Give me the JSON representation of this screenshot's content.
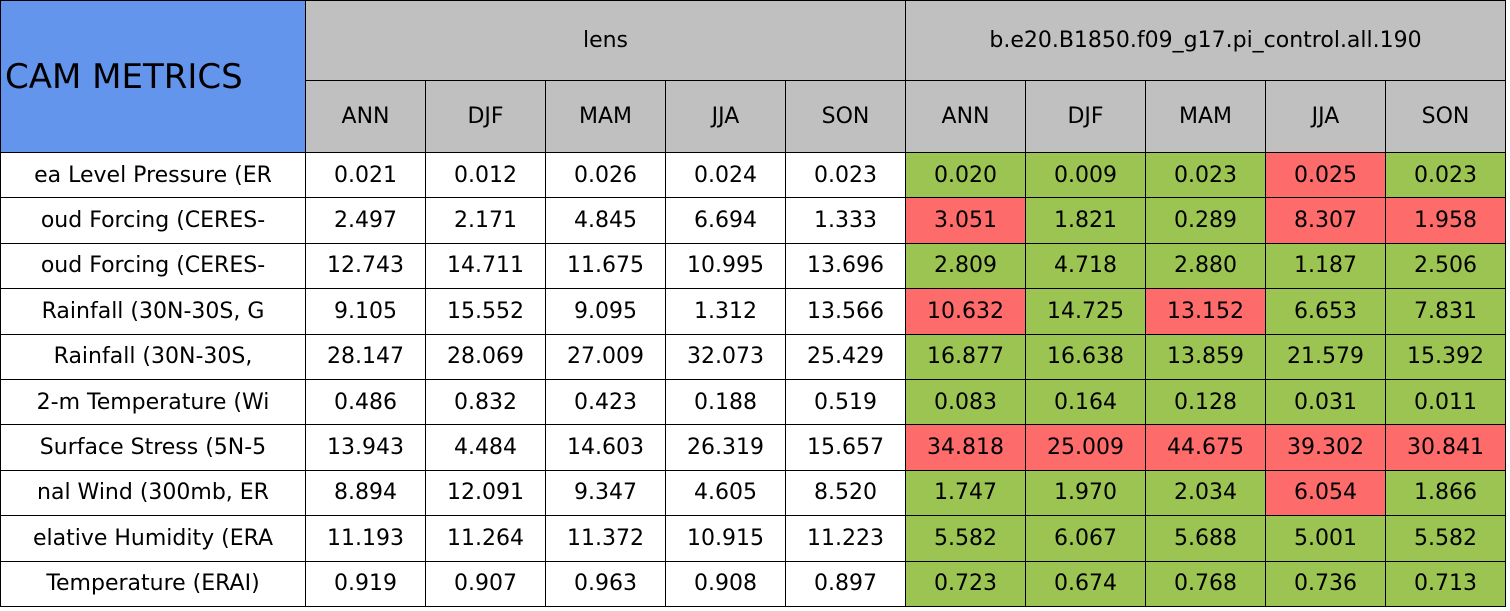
{
  "header": {
    "title": "CAM METRICS",
    "groups": [
      "lens",
      "b.e20.B1850.f09_g17.pi_control.all.190"
    ],
    "seasons": [
      "ANN",
      "DJF",
      "MAM",
      "JJA",
      "SON"
    ]
  },
  "table": {
    "rows": [
      {
        "label": "ea Level Pressure (ER",
        "values": [
          "0.021",
          "0.012",
          "0.026",
          "0.024",
          "0.023",
          "0.020",
          "0.009",
          "0.023",
          "0.025",
          "0.023"
        ],
        "colors": [
          "#ffffff",
          "#ffffff",
          "#ffffff",
          "#ffffff",
          "#ffffff",
          "#9bc452",
          "#9bc452",
          "#9bc452",
          "#fe6b6b",
          "#9bc452"
        ]
      },
      {
        "label": "oud Forcing (CERES-",
        "values": [
          "2.497",
          "2.171",
          "4.845",
          "6.694",
          "1.333",
          "3.051",
          "1.821",
          "0.289",
          "8.307",
          "1.958"
        ],
        "colors": [
          "#ffffff",
          "#ffffff",
          "#ffffff",
          "#ffffff",
          "#ffffff",
          "#fe6b6b",
          "#9bc452",
          "#9bc452",
          "#fe6b6b",
          "#fe6b6b"
        ]
      },
      {
        "label": "oud Forcing (CERES-",
        "values": [
          "12.743",
          "14.711",
          "11.675",
          "10.995",
          "13.696",
          "2.809",
          "4.718",
          "2.880",
          "1.187",
          "2.506"
        ],
        "colors": [
          "#ffffff",
          "#ffffff",
          "#ffffff",
          "#ffffff",
          "#ffffff",
          "#9bc452",
          "#9bc452",
          "#9bc452",
          "#9bc452",
          "#9bc452"
        ]
      },
      {
        "label": "Rainfall (30N-30S, G",
        "values": [
          "9.105",
          "15.552",
          "9.095",
          "1.312",
          "13.566",
          "10.632",
          "14.725",
          "13.152",
          "6.653",
          "7.831"
        ],
        "colors": [
          "#ffffff",
          "#ffffff",
          "#ffffff",
          "#ffffff",
          "#ffffff",
          "#fe6b6b",
          "#9bc452",
          "#fe6b6b",
          "#9bc452",
          "#9bc452"
        ]
      },
      {
        "label": "Rainfall (30N-30S,",
        "values": [
          "28.147",
          "28.069",
          "27.009",
          "32.073",
          "25.429",
          "16.877",
          "16.638",
          "13.859",
          "21.579",
          "15.392"
        ],
        "colors": [
          "#ffffff",
          "#ffffff",
          "#ffffff",
          "#ffffff",
          "#ffffff",
          "#9bc452",
          "#9bc452",
          "#9bc452",
          "#9bc452",
          "#9bc452"
        ]
      },
      {
        "label": "2-m Temperature (Wi",
        "values": [
          "0.486",
          "0.832",
          "0.423",
          "0.188",
          "0.519",
          "0.083",
          "0.164",
          "0.128",
          "0.031",
          "0.011"
        ],
        "colors": [
          "#ffffff",
          "#ffffff",
          "#ffffff",
          "#ffffff",
          "#ffffff",
          "#9bc452",
          "#9bc452",
          "#9bc452",
          "#9bc452",
          "#9bc452"
        ]
      },
      {
        "label": "Surface Stress (5N-5",
        "values": [
          "13.943",
          "4.484",
          "14.603",
          "26.319",
          "15.657",
          "34.818",
          "25.009",
          "44.675",
          "39.302",
          "30.841"
        ],
        "colors": [
          "#ffffff",
          "#ffffff",
          "#ffffff",
          "#ffffff",
          "#ffffff",
          "#fe6b6b",
          "#fe6b6b",
          "#fe6b6b",
          "#fe6b6b",
          "#fe6b6b"
        ]
      },
      {
        "label": "nal Wind (300mb, ER",
        "values": [
          "8.894",
          "12.091",
          "9.347",
          "4.605",
          "8.520",
          "1.747",
          "1.970",
          "2.034",
          "6.054",
          "1.866"
        ],
        "colors": [
          "#ffffff",
          "#ffffff",
          "#ffffff",
          "#ffffff",
          "#ffffff",
          "#9bc452",
          "#9bc452",
          "#9bc452",
          "#fe6b6b",
          "#9bc452"
        ]
      },
      {
        "label": "elative Humidity (ERA",
        "values": [
          "11.193",
          "11.264",
          "11.372",
          "10.915",
          "11.223",
          "5.582",
          "6.067",
          "5.688",
          "5.001",
          "5.582"
        ],
        "colors": [
          "#ffffff",
          "#ffffff",
          "#ffffff",
          "#ffffff",
          "#ffffff",
          "#9bc452",
          "#9bc452",
          "#9bc452",
          "#9bc452",
          "#9bc452"
        ]
      },
      {
        "label": "Temperature (ERAI)",
        "values": [
          "0.919",
          "0.907",
          "0.963",
          "0.908",
          "0.897",
          "0.723",
          "0.674",
          "0.768",
          "0.736",
          "0.713"
        ],
        "colors": [
          "#ffffff",
          "#ffffff",
          "#ffffff",
          "#ffffff",
          "#ffffff",
          "#9bc452",
          "#9bc452",
          "#9bc452",
          "#9bc452",
          "#9bc452"
        ]
      }
    ]
  }
}
